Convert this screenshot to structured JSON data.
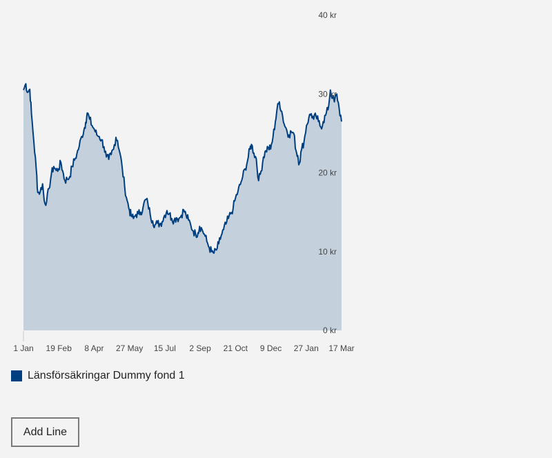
{
  "chart_data": {
    "type": "area",
    "x_ticks": [
      "1 Jan",
      "19 Feb",
      "8 Apr",
      "27 May",
      "15 Jul",
      "2 Sep",
      "21 Oct",
      "9 Dec",
      "27 Jan",
      "17 Mar"
    ],
    "y_ticks": [
      "0 kr",
      "10 kr",
      "20 kr",
      "30 kr",
      "40 kr"
    ],
    "ylim": [
      0,
      40
    ],
    "x_tick_day_indices": [
      0,
      49,
      98,
      147,
      196,
      245,
      294,
      343,
      392,
      441
    ],
    "grid": false,
    "legend_position": "bottom-left",
    "series": [
      {
        "name": "Länsförsäkringar Dummy fond 1",
        "color": "#003f7f",
        "fill": "#c4d0db",
        "points": [
          [
            0,
            30.5
          ],
          [
            3,
            31.3
          ],
          [
            5,
            30.2
          ],
          [
            8,
            30.6
          ],
          [
            10,
            27.5
          ],
          [
            13,
            24.0
          ],
          [
            16,
            20.5
          ],
          [
            18,
            17.5
          ],
          [
            21,
            17.6
          ],
          [
            24,
            18.6
          ],
          [
            26,
            16.5
          ],
          [
            29,
            16.3
          ],
          [
            32,
            18.0
          ],
          [
            35,
            19.8
          ],
          [
            38,
            20.8
          ],
          [
            41,
            20.3
          ],
          [
            44,
            20.5
          ],
          [
            47,
            21.3
          ],
          [
            49,
            20.3
          ],
          [
            52,
            19.0
          ],
          [
            55,
            19.2
          ],
          [
            58,
            19.5
          ],
          [
            61,
            20.8
          ],
          [
            64,
            21.6
          ],
          [
            67,
            22.4
          ],
          [
            70,
            23.4
          ],
          [
            73,
            24.6
          ],
          [
            76,
            25.5
          ],
          [
            78,
            26.4
          ],
          [
            80,
            27.6
          ],
          [
            83,
            26.8
          ],
          [
            86,
            26.0
          ],
          [
            89,
            25.5
          ],
          [
            92,
            24.8
          ],
          [
            95,
            24.6
          ],
          [
            98,
            24.2
          ],
          [
            101,
            23.3
          ],
          [
            104,
            22.0
          ],
          [
            107,
            21.7
          ],
          [
            110,
            22.3
          ],
          [
            113,
            23.0
          ],
          [
            116,
            24.5
          ],
          [
            118,
            24.1
          ],
          [
            121,
            22.5
          ],
          [
            124,
            20.5
          ],
          [
            127,
            18.2
          ],
          [
            130,
            16.5
          ],
          [
            133,
            15.2
          ],
          [
            135,
            14.6
          ],
          [
            138,
            14.2
          ],
          [
            141,
            14.7
          ],
          [
            144,
            14.8
          ],
          [
            147,
            15.0
          ],
          [
            150,
            15.6
          ],
          [
            153,
            16.6
          ],
          [
            156,
            16.2
          ],
          [
            159,
            14.7
          ],
          [
            162,
            13.9
          ],
          [
            165,
            13.4
          ],
          [
            168,
            13.6
          ],
          [
            171,
            13.5
          ],
          [
            174,
            13.8
          ],
          [
            177,
            14.6
          ],
          [
            180,
            15.2
          ],
          [
            183,
            14.8
          ],
          [
            186,
            14.2
          ],
          [
            189,
            14.0
          ],
          [
            192,
            14.3
          ],
          [
            195,
            14.2
          ],
          [
            198,
            14.6
          ],
          [
            201,
            15.3
          ],
          [
            204,
            14.6
          ],
          [
            207,
            14.0
          ],
          [
            210,
            13.3
          ],
          [
            213,
            12.6
          ],
          [
            216,
            12.2
          ],
          [
            219,
            12.4
          ],
          [
            221,
            13.2
          ],
          [
            224,
            12.8
          ],
          [
            227,
            12.2
          ],
          [
            230,
            11.3
          ],
          [
            233,
            10.5
          ],
          [
            236,
            10.0
          ],
          [
            239,
            9.8
          ],
          [
            242,
            10.2
          ],
          [
            245,
            11.0
          ],
          [
            248,
            12.0
          ],
          [
            251,
            12.8
          ],
          [
            254,
            13.5
          ],
          [
            257,
            14.2
          ],
          [
            260,
            14.8
          ],
          [
            263,
            15.5
          ],
          [
            266,
            16.8
          ],
          [
            269,
            17.6
          ],
          [
            272,
            18.5
          ],
          [
            275,
            19.5
          ],
          [
            278,
            20.5
          ],
          [
            281,
            21.5
          ],
          [
            284,
            23.0
          ],
          [
            286,
            23.6
          ],
          [
            289,
            22.5
          ],
          [
            292,
            21.8
          ],
          [
            295,
            19.0
          ],
          [
            298,
            20.2
          ],
          [
            301,
            22.0
          ],
          [
            304,
            22.8
          ],
          [
            307,
            23.2
          ],
          [
            310,
            23.0
          ],
          [
            313,
            24.5
          ],
          [
            316,
            26.5
          ],
          [
            318,
            28.0
          ],
          [
            321,
            29.0
          ],
          [
            324,
            27.8
          ],
          [
            327,
            26.2
          ],
          [
            330,
            25.5
          ],
          [
            333,
            24.8
          ],
          [
            336,
            25.2
          ],
          [
            339,
            25.0
          ],
          [
            342,
            22.8
          ],
          [
            344,
            22.2
          ],
          [
            346,
            21.2
          ],
          [
            349,
            23.0
          ],
          [
            352,
            24.0
          ],
          [
            355,
            26.0
          ],
          [
            358,
            27.0
          ],
          [
            361,
            27.5
          ],
          [
            364,
            26.8
          ],
          [
            367,
            27.2
          ],
          [
            370,
            26.5
          ],
          [
            373,
            25.8
          ],
          [
            376,
            26.5
          ],
          [
            379,
            27.3
          ],
          [
            382,
            28.0
          ],
          [
            385,
            30.5
          ],
          [
            388,
            29.5
          ],
          [
            390,
            29.0
          ],
          [
            393,
            30.0
          ],
          [
            396,
            28.2
          ],
          [
            399,
            26.5
          ]
        ]
      }
    ]
  },
  "legend": {
    "label": "Länsförsäkringar Dummy fond 1",
    "color": "#003f7f"
  },
  "add_line_label": "Add Line"
}
